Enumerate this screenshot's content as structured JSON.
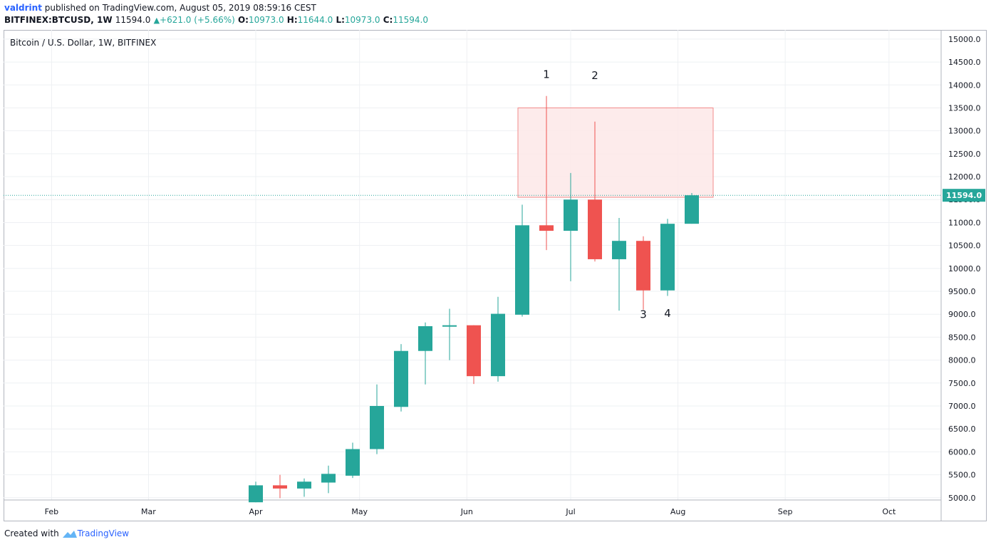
{
  "header": {
    "author": "valdrint",
    "published_text": " published on TradingView.com, August 05, 2019 08:59:16 CEST",
    "symbol": "BITFINEX:BTCUSD, 1W",
    "last": "11594.0",
    "change": "+621.0 (+5.66%)",
    "o_label": "O:",
    "o_value": "10973.0",
    "h_label": "H:",
    "h_value": "11644.0",
    "l_label": "L:",
    "l_value": "10973.0",
    "c_label": "C:",
    "c_value": "11594.0"
  },
  "footer": {
    "created_with": "Created with",
    "brand": "TradingView"
  },
  "colors": {
    "up": "#26a69a",
    "down": "#ef5350",
    "zone_fill": "#fde8e8",
    "zone_stroke": "#f28b8b",
    "price_line": "#26a69a",
    "grid": "#eef0f3"
  },
  "chart_data": {
    "type": "candlestick",
    "title": "Bitcoin / U.S. Dollar, 1W, BITFINEX",
    "x_labels": [
      "Feb",
      "Mar",
      "Apr",
      "May",
      "Jun",
      "Jul",
      "Aug",
      "Sep",
      "Oct"
    ],
    "y_ticks": [
      5000,
      5500,
      6000,
      6500,
      7000,
      7500,
      8000,
      8500,
      9000,
      9500,
      10000,
      10500,
      11000,
      11500,
      12000,
      12500,
      13000,
      13500,
      14000,
      14500,
      15000
    ],
    "y_tick_labels": [
      "5000.0",
      "5500.0",
      "6000.0",
      "6500.0",
      "7000.0",
      "7500.0",
      "8000.0",
      "8500.0",
      "9000.0",
      "9500.0",
      "10000.0",
      "10500.0",
      "11000.0",
      "11500.0",
      "12000.0",
      "12500.0",
      "13000.0",
      "13500.0",
      "14000.0",
      "14500.0",
      "15000.0"
    ],
    "ylim": [
      4950,
      15200
    ],
    "grid": true,
    "candles": [
      {
        "date": "2019-04-01",
        "open": 4900,
        "high": 5350,
        "low": 4900,
        "close": 5270
      },
      {
        "date": "2019-04-08",
        "open": 5270,
        "high": 5500,
        "low": 4990,
        "close": 5200
      },
      {
        "date": "2019-04-15",
        "open": 5200,
        "high": 5420,
        "low": 5020,
        "close": 5350
      },
      {
        "date": "2019-04-22",
        "open": 5330,
        "high": 5700,
        "low": 5100,
        "close": 5520
      },
      {
        "date": "2019-04-29",
        "open": 5480,
        "high": 6200,
        "low": 5430,
        "close": 6060
      },
      {
        "date": "2019-05-06",
        "open": 6060,
        "high": 7470,
        "low": 5950,
        "close": 7000
      },
      {
        "date": "2019-05-13",
        "open": 6980,
        "high": 8350,
        "low": 6880,
        "close": 8200
      },
      {
        "date": "2019-05-20",
        "open": 8200,
        "high": 8820,
        "low": 7470,
        "close": 8740
      },
      {
        "date": "2019-05-27",
        "open": 8740,
        "high": 9120,
        "low": 8000,
        "close": 8760
      },
      {
        "date": "2019-06-03",
        "open": 8760,
        "high": 8760,
        "low": 7480,
        "close": 7650
      },
      {
        "date": "2019-06-10",
        "open": 7650,
        "high": 9380,
        "low": 7530,
        "close": 9010
      },
      {
        "date": "2019-06-17",
        "open": 8990,
        "high": 11390,
        "low": 8950,
        "close": 10940
      },
      {
        "date": "2019-06-24",
        "open": 10940,
        "high": 13760,
        "low": 10400,
        "close": 10820
      },
      {
        "date": "2019-07-01",
        "open": 10820,
        "high": 12080,
        "low": 9720,
        "close": 11500
      },
      {
        "date": "2019-07-08",
        "open": 11500,
        "high": 13200,
        "low": 10150,
        "close": 10200
      },
      {
        "date": "2019-07-15",
        "open": 10200,
        "high": 11100,
        "low": 9080,
        "close": 10600
      },
      {
        "date": "2019-07-22",
        "open": 10600,
        "high": 10700,
        "low": 9100,
        "close": 9520
      },
      {
        "date": "2019-07-29",
        "open": 9520,
        "high": 11080,
        "low": 9400,
        "close": 10973
      },
      {
        "date": "2019-08-05",
        "open": 10973,
        "high": 11644,
        "low": 10973,
        "close": 11594
      }
    ],
    "resistance_zone": {
      "from": "2019-06-17",
      "to": "2019-08-05",
      "low": 11550,
      "high": 13500
    },
    "last_price": 11594.0,
    "last_price_label": "11594.0",
    "annotations": [
      {
        "text": "1",
        "date": "2019-06-24",
        "price": 14150
      },
      {
        "text": "2",
        "date": "2019-07-08",
        "price": 14130
      },
      {
        "text": "3",
        "date": "2019-07-22",
        "price": 8920
      },
      {
        "text": "4",
        "date": "2019-07-29",
        "price": 8940
      }
    ]
  }
}
